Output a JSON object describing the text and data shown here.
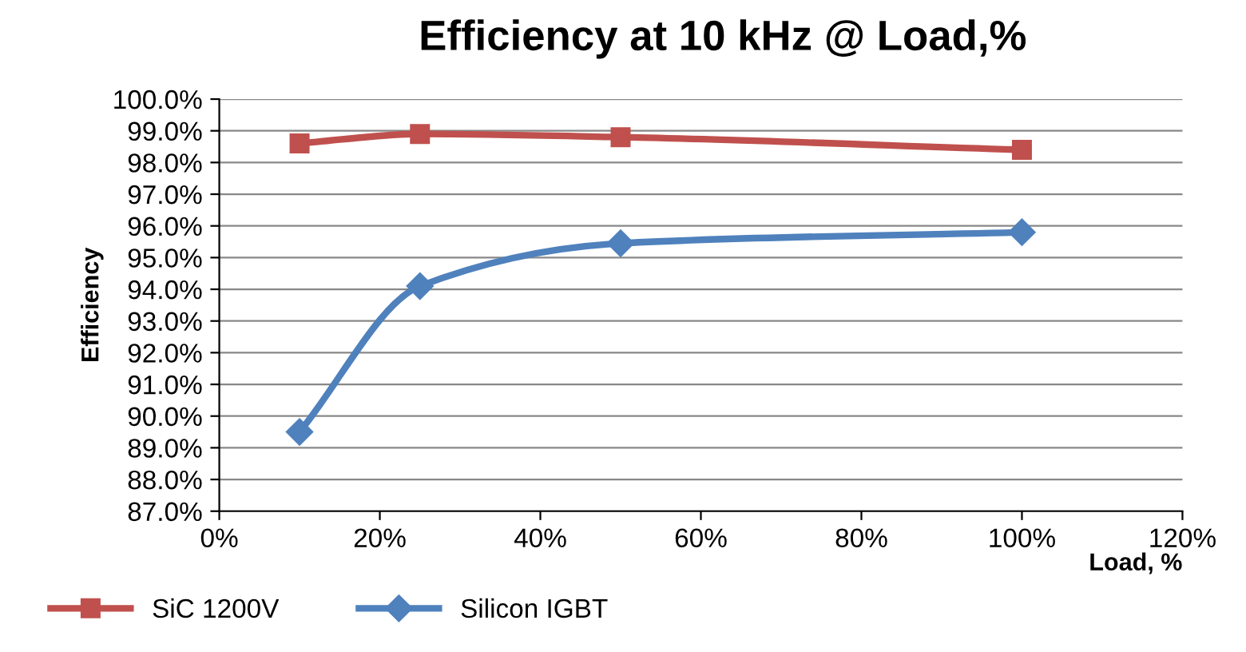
{
  "chart_data": {
    "type": "line",
    "title": "Efficiency at 10 kHz @ Load,%",
    "xlabel": "Load, %",
    "ylabel": "Efficiency",
    "series": [
      {
        "name": "SiC 1200V",
        "color": "#c0504d",
        "marker": "square",
        "x": [
          10,
          25,
          50,
          100
        ],
        "values": [
          98.6,
          98.9,
          98.8,
          98.4
        ]
      },
      {
        "name": "Silicon IGBT",
        "color": "#4f81bd",
        "marker": "diamond",
        "x": [
          10,
          25,
          50,
          100
        ],
        "values": [
          89.5,
          94.1,
          95.45,
          95.8
        ]
      }
    ],
    "xlim": [
      0,
      120
    ],
    "xticks": [
      {
        "value": 0,
        "label": "0%"
      },
      {
        "value": 20,
        "label": "20%"
      },
      {
        "value": 40,
        "label": "40%"
      },
      {
        "value": 60,
        "label": "60%"
      },
      {
        "value": 80,
        "label": "80%"
      },
      {
        "value": 100,
        "label": "100%"
      },
      {
        "value": 120,
        "label": "120%"
      }
    ],
    "ylim": [
      87,
      100
    ],
    "yticks": [
      {
        "value": 87,
        "label": "87.0%"
      },
      {
        "value": 88,
        "label": "88.0%"
      },
      {
        "value": 89,
        "label": "89.0%"
      },
      {
        "value": 90,
        "label": "90.0%"
      },
      {
        "value": 91,
        "label": "91.0%"
      },
      {
        "value": 92,
        "label": "92.0%"
      },
      {
        "value": 93,
        "label": "93.0%"
      },
      {
        "value": 94,
        "label": "94.0%"
      },
      {
        "value": 95,
        "label": "95.0%"
      },
      {
        "value": 96,
        "label": "96.0%"
      },
      {
        "value": 97,
        "label": "97.0%"
      },
      {
        "value": 98,
        "label": "98.0%"
      },
      {
        "value": 99,
        "label": "99.0%"
      },
      {
        "value": 100,
        "label": "100.0%"
      }
    ],
    "grid": "y",
    "legend": "bottom left",
    "line_style": "solid"
  }
}
